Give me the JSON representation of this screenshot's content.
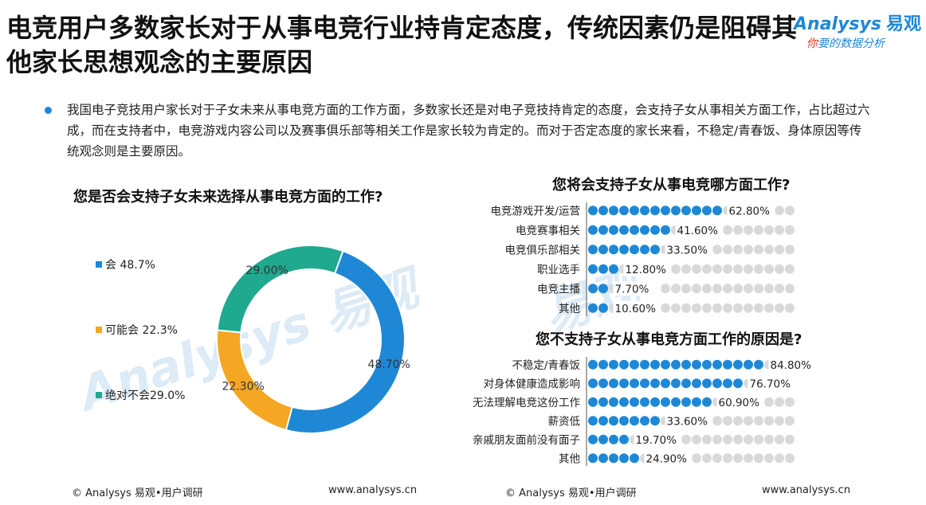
{
  "header": {
    "title": "电竞用户多数家长对于从事电竞行业持肯定态度，传统因素仍是阻碍其他家长思想观念的主要原因",
    "logo_name": "Analysys",
    "logo_cn": "易观",
    "logo_slogan_first": "你",
    "logo_slogan_rest": "要的数据分析"
  },
  "summary": "我国电子竞技用户家长对于子女未来从事电竞方面的工作方面，多数家长还是对电子竞技持肯定的态度，会支持子女从事相关方面工作，占比超过六成，而在支持者中，电竞游戏内容公司以及赛事俱乐部等相关工作是家长较为肯定的。而对于否定态度的家长来看，不稳定/青春饭、身体原因等传统观念则是主要原因。",
  "footer": {
    "left_source": "© Analysys 易观•用户调研",
    "left_url": "www.analysys.cn",
    "right_source": "© Analysys 易观•用户调研",
    "right_url": "www.analysys.cn"
  },
  "colors": {
    "blue": "#1e88d6",
    "orange": "#f5a623",
    "teal": "#1fa98f",
    "dot_gray": "#d9d9d9"
  },
  "chart_data": [
    {
      "type": "pie",
      "title": "您是否会支持子女未来选择从事电竞方面的工作?",
      "legend": [
        "会 48.7%",
        "可能会 22.3%",
        "绝对不会29.0%"
      ],
      "slices": [
        {
          "label": "会",
          "value": 48.7,
          "display": "48.70%",
          "color": "#1e88d6"
        },
        {
          "label": "可能会",
          "value": 22.3,
          "display": "22.30%",
          "color": "#f5a623"
        },
        {
          "label": "绝对不会",
          "value": 29.0,
          "display": "29.00%",
          "color": "#1fa98f"
        }
      ]
    },
    {
      "type": "bar",
      "title": "您将会支持子女从事电竞哪方面工作?",
      "categories": [
        "电竞游戏开发/运营",
        "电竞赛事相关",
        "电竞俱乐部相关",
        "职业选手",
        "电竞主播",
        "其他"
      ],
      "values": [
        62.8,
        41.6,
        33.5,
        12.8,
        7.7,
        10.6
      ],
      "labels": [
        "62.80%",
        "41.60%",
        "33.50%",
        "12.80%",
        "7.70%",
        "10.60%"
      ],
      "xlim": [
        0,
        100
      ]
    },
    {
      "type": "bar",
      "title": "您不支持子女从事电竞方面工作的原因是?",
      "categories": [
        "不稳定/青春饭",
        "对身体健康造成影响",
        "无法理解电竞这份工作",
        "薪资低",
        "亲戚朋友面前没有面子",
        "其他"
      ],
      "values": [
        84.8,
        76.7,
        60.9,
        33.6,
        19.7,
        24.9
      ],
      "labels": [
        "84.80%",
        "76.70%",
        "60.90%",
        "33.60%",
        "19.70%",
        "24.90%"
      ],
      "xlim": [
        0,
        100
      ]
    }
  ]
}
